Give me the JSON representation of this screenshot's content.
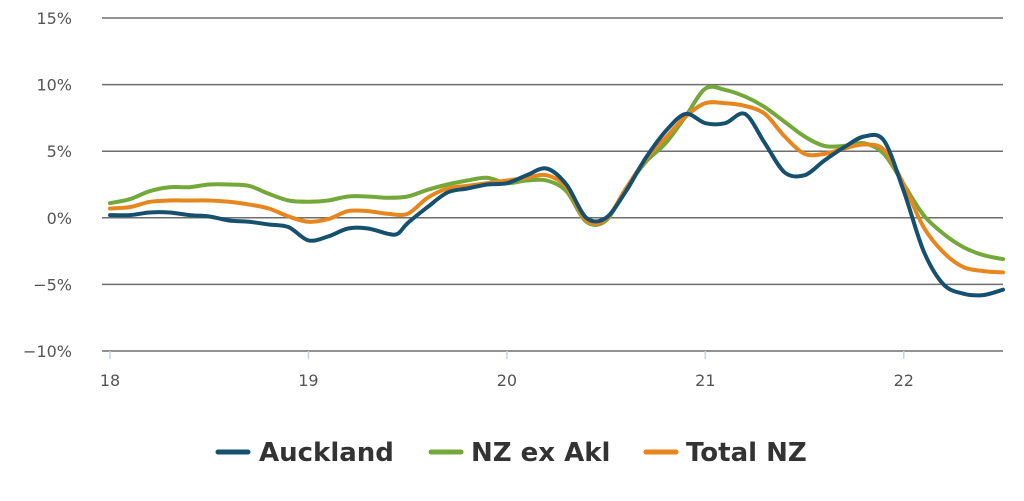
{
  "chart_data": {
    "type": "line",
    "title": "",
    "xlabel": "",
    "ylabel": "",
    "xlim": [
      18,
      22.5
    ],
    "ylim": [
      -10,
      15
    ],
    "y_ticks": [
      {
        "value": 15,
        "label": "15%"
      },
      {
        "value": 10,
        "label": "10%"
      },
      {
        "value": 5,
        "label": "5%"
      },
      {
        "value": 0,
        "label": "0%"
      },
      {
        "value": -5,
        "label": "−5%"
      },
      {
        "value": -10,
        "label": "−10%"
      }
    ],
    "x_ticks": [
      {
        "value": 18,
        "label": "18"
      },
      {
        "value": 19,
        "label": "19"
      },
      {
        "value": 20,
        "label": "20"
      },
      {
        "value": 21,
        "label": "21"
      },
      {
        "value": 22,
        "label": "22"
      }
    ],
    "grid": true,
    "legend_position": "bottom",
    "series": [
      {
        "name": "Auckland",
        "color": "#16506f",
        "points": [
          [
            18.0,
            0.2
          ],
          [
            18.1,
            0.2
          ],
          [
            18.2,
            0.4
          ],
          [
            18.3,
            0.4
          ],
          [
            18.4,
            0.2
          ],
          [
            18.5,
            0.1
          ],
          [
            18.6,
            -0.2
          ],
          [
            18.7,
            -0.3
          ],
          [
            18.8,
            -0.5
          ],
          [
            18.9,
            -0.7
          ],
          [
            19.0,
            -1.7
          ],
          [
            19.1,
            -1.4
          ],
          [
            19.2,
            -0.8
          ],
          [
            19.3,
            -0.8
          ],
          [
            19.4,
            -1.2
          ],
          [
            19.45,
            -1.2
          ],
          [
            19.5,
            -0.4
          ],
          [
            19.6,
            0.8
          ],
          [
            19.7,
            1.9
          ],
          [
            19.8,
            2.2
          ],
          [
            19.9,
            2.5
          ],
          [
            20.0,
            2.6
          ],
          [
            20.1,
            3.2
          ],
          [
            20.2,
            3.7
          ],
          [
            20.3,
            2.5
          ],
          [
            20.4,
            0.0
          ],
          [
            20.5,
            0.0
          ],
          [
            20.6,
            2.0
          ],
          [
            20.7,
            4.5
          ],
          [
            20.8,
            6.5
          ],
          [
            20.9,
            7.8
          ],
          [
            21.0,
            7.1
          ],
          [
            21.1,
            7.1
          ],
          [
            21.2,
            7.8
          ],
          [
            21.3,
            5.6
          ],
          [
            21.4,
            3.4
          ],
          [
            21.5,
            3.2
          ],
          [
            21.6,
            4.3
          ],
          [
            21.7,
            5.3
          ],
          [
            21.8,
            6.1
          ],
          [
            21.9,
            5.8
          ],
          [
            22.0,
            2.0
          ],
          [
            22.1,
            -2.5
          ],
          [
            22.2,
            -5.0
          ],
          [
            22.3,
            -5.7
          ],
          [
            22.4,
            -5.8
          ],
          [
            22.5,
            -5.4
          ]
        ]
      },
      {
        "name": "NZ ex Akl",
        "color": "#74a83a",
        "points": [
          [
            18.0,
            1.1
          ],
          [
            18.1,
            1.4
          ],
          [
            18.2,
            2.0
          ],
          [
            18.3,
            2.3
          ],
          [
            18.4,
            2.3
          ],
          [
            18.5,
            2.5
          ],
          [
            18.6,
            2.5
          ],
          [
            18.7,
            2.4
          ],
          [
            18.8,
            1.8
          ],
          [
            18.9,
            1.3
          ],
          [
            19.0,
            1.2
          ],
          [
            19.1,
            1.3
          ],
          [
            19.2,
            1.6
          ],
          [
            19.3,
            1.6
          ],
          [
            19.4,
            1.5
          ],
          [
            19.5,
            1.6
          ],
          [
            19.6,
            2.1
          ],
          [
            19.7,
            2.5
          ],
          [
            19.8,
            2.8
          ],
          [
            19.9,
            3.0
          ],
          [
            20.0,
            2.6
          ],
          [
            20.1,
            2.8
          ],
          [
            20.2,
            2.8
          ],
          [
            20.3,
            2.0
          ],
          [
            20.4,
            -0.3
          ],
          [
            20.5,
            -0.2
          ],
          [
            20.6,
            2.2
          ],
          [
            20.7,
            4.2
          ],
          [
            20.8,
            5.6
          ],
          [
            20.9,
            7.6
          ],
          [
            21.0,
            9.7
          ],
          [
            21.1,
            9.6
          ],
          [
            21.2,
            9.1
          ],
          [
            21.3,
            8.3
          ],
          [
            21.4,
            7.2
          ],
          [
            21.5,
            6.1
          ],
          [
            21.6,
            5.4
          ],
          [
            21.7,
            5.4
          ],
          [
            21.8,
            5.6
          ],
          [
            21.9,
            4.8
          ],
          [
            22.0,
            2.5
          ],
          [
            22.1,
            0.2
          ],
          [
            22.2,
            -1.2
          ],
          [
            22.3,
            -2.2
          ],
          [
            22.4,
            -2.8
          ],
          [
            22.5,
            -3.1
          ]
        ]
      },
      {
        "name": "Total NZ",
        "color": "#e7861d",
        "points": [
          [
            18.0,
            0.7
          ],
          [
            18.1,
            0.8
          ],
          [
            18.2,
            1.2
          ],
          [
            18.3,
            1.3
          ],
          [
            18.4,
            1.3
          ],
          [
            18.5,
            1.3
          ],
          [
            18.6,
            1.2
          ],
          [
            18.7,
            1.0
          ],
          [
            18.8,
            0.7
          ],
          [
            18.9,
            0.1
          ],
          [
            19.0,
            -0.3
          ],
          [
            19.1,
            -0.1
          ],
          [
            19.2,
            0.5
          ],
          [
            19.3,
            0.5
          ],
          [
            19.4,
            0.3
          ],
          [
            19.5,
            0.3
          ],
          [
            19.6,
            1.5
          ],
          [
            19.7,
            2.2
          ],
          [
            19.8,
            2.4
          ],
          [
            19.9,
            2.6
          ],
          [
            20.0,
            2.8
          ],
          [
            20.1,
            3.0
          ],
          [
            20.2,
            3.2
          ],
          [
            20.3,
            2.3
          ],
          [
            20.4,
            -0.2
          ],
          [
            20.5,
            -0.1
          ],
          [
            20.6,
            2.2
          ],
          [
            20.7,
            4.4
          ],
          [
            20.8,
            6.0
          ],
          [
            20.9,
            7.6
          ],
          [
            21.0,
            8.6
          ],
          [
            21.1,
            8.6
          ],
          [
            21.2,
            8.4
          ],
          [
            21.3,
            7.8
          ],
          [
            21.4,
            6.1
          ],
          [
            21.5,
            4.8
          ],
          [
            21.6,
            4.8
          ],
          [
            21.7,
            5.2
          ],
          [
            21.8,
            5.5
          ],
          [
            21.9,
            5.1
          ],
          [
            22.0,
            2.5
          ],
          [
            22.1,
            -0.7
          ],
          [
            22.2,
            -2.6
          ],
          [
            22.3,
            -3.7
          ],
          [
            22.4,
            -4.0
          ],
          [
            22.5,
            -4.1
          ]
        ]
      }
    ]
  }
}
